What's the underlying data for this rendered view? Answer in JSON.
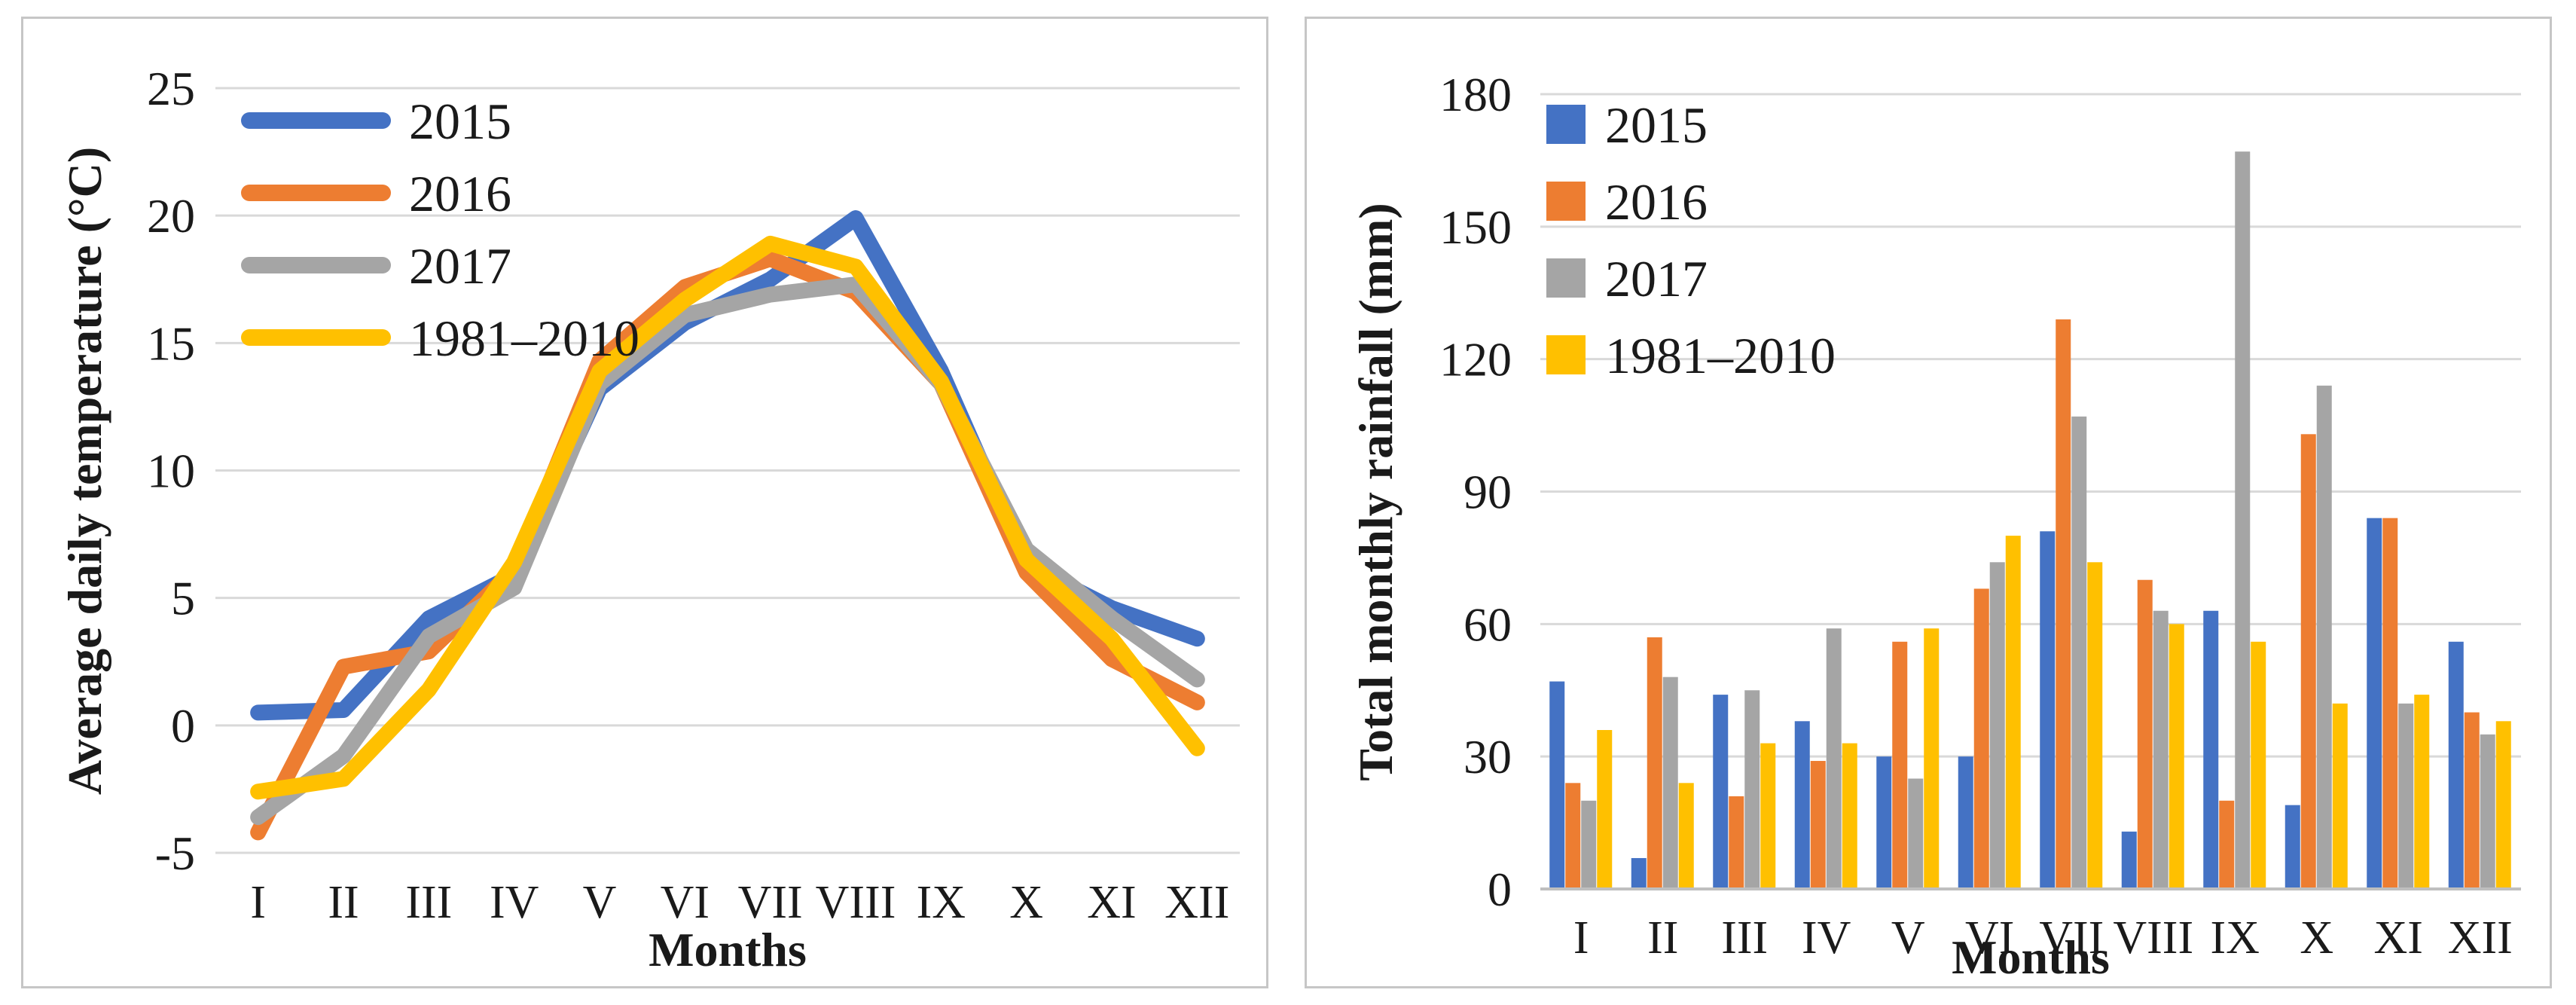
{
  "figure": {
    "description": "Two-panel climate figure: monthly average daily temperature (line chart) and total monthly rainfall (bar chart) for 2015, 2016, 2017 and the 1981–2010 climate normal",
    "colors": {
      "series_2015": "#4472C4",
      "series_2016": "#ED7D31",
      "series_2017": "#A5A5A5",
      "series_1981_2010": "#FFC000",
      "gridline": "#D9D9D9",
      "axis_line": "#BFBFBF",
      "text": "#1A1A1A",
      "panel_border": "#C6C6C6",
      "background": "#FFFFFF"
    }
  },
  "chart_data": [
    {
      "type": "line",
      "title": "",
      "ylabel": "Average daily temperature (°C)",
      "xlabel": "Months",
      "categories": [
        "I",
        "II",
        "III",
        "IV",
        "V",
        "VI",
        "VII",
        "VIII",
        "IX",
        "X",
        "XI",
        "XII"
      ],
      "ylim": [
        -5,
        25
      ],
      "yticks": [
        25,
        20,
        15,
        10,
        5,
        0,
        -5
      ],
      "grid": true,
      "legend_position": "top-left",
      "series": [
        {
          "name": "2015",
          "color": "#4472C4",
          "values": [
            0.5,
            0.6,
            4.2,
            5.9,
            13.2,
            15.8,
            17.5,
            19.9,
            13.9,
            6.3,
            4.6,
            3.4
          ]
        },
        {
          "name": "2016",
          "color": "#ED7D31",
          "values": [
            -4.2,
            2.3,
            2.9,
            6.1,
            14.3,
            17.2,
            18.3,
            17.0,
            13.4,
            6.0,
            2.6,
            0.9
          ]
        },
        {
          "name": "2017",
          "color": "#A5A5A5",
          "values": [
            -3.6,
            -1.2,
            3.5,
            5.4,
            13.4,
            16.1,
            16.9,
            17.3,
            13.4,
            6.9,
            4.2,
            1.8
          ]
        },
        {
          "name": "1981–2010",
          "color": "#FFC000",
          "values": [
            -2.6,
            -2.1,
            1.4,
            6.4,
            13.9,
            16.7,
            18.9,
            18.0,
            13.5,
            6.5,
            3.4,
            -0.9
          ]
        }
      ]
    },
    {
      "type": "bar",
      "title": "",
      "ylabel": "Total monthly rainfall (mm)",
      "xlabel": "Months",
      "categories": [
        "I",
        "II",
        "III",
        "IV",
        "V",
        "VI",
        "VII",
        "VIII",
        "IX",
        "X",
        "XI",
        "XII"
      ],
      "ylim": [
        0,
        180
      ],
      "yticks": [
        180,
        150,
        120,
        90,
        60,
        30,
        0
      ],
      "grid": true,
      "legend_position": "top-left",
      "series": [
        {
          "name": "2015",
          "color": "#4472C4",
          "values": [
            47,
            7,
            44,
            38,
            30,
            30,
            81,
            13,
            63,
            19,
            84,
            56
          ]
        },
        {
          "name": "2016",
          "color": "#ED7D31",
          "values": [
            24,
            57,
            21,
            29,
            56,
            68,
            129,
            70,
            20,
            103,
            84,
            40
          ]
        },
        {
          "name": "2017",
          "color": "#A5A5A5",
          "values": [
            20,
            48,
            45,
            59,
            25,
            74,
            107,
            63,
            167,
            114,
            42,
            35
          ]
        },
        {
          "name": "1981–2010",
          "color": "#FFC000",
          "values": [
            36,
            24,
            33,
            33,
            59,
            80,
            74,
            60,
            56,
            42,
            44,
            38
          ]
        }
      ]
    }
  ]
}
